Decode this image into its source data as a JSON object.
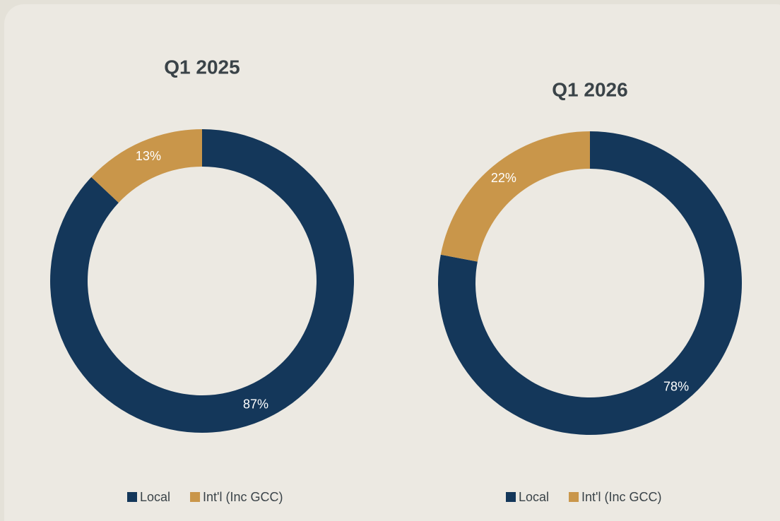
{
  "chart_data": [
    {
      "type": "donut",
      "title": "Q1 2025",
      "categories": [
        "Local",
        "Int'l (Inc GCC)"
      ],
      "values": [
        87,
        13
      ],
      "value_labels": [
        "87%",
        "13%"
      ],
      "colors": [
        "#14375a",
        "#c9964a"
      ],
      "legend": "bottom"
    },
    {
      "type": "donut",
      "title": "Q1 2026",
      "categories": [
        "Local",
        "Int'l (Inc GCC)"
      ],
      "values": [
        78,
        22
      ],
      "value_labels": [
        "78%",
        "22%"
      ],
      "colors": [
        "#14375a",
        "#c9964a"
      ],
      "legend": "bottom"
    }
  ]
}
